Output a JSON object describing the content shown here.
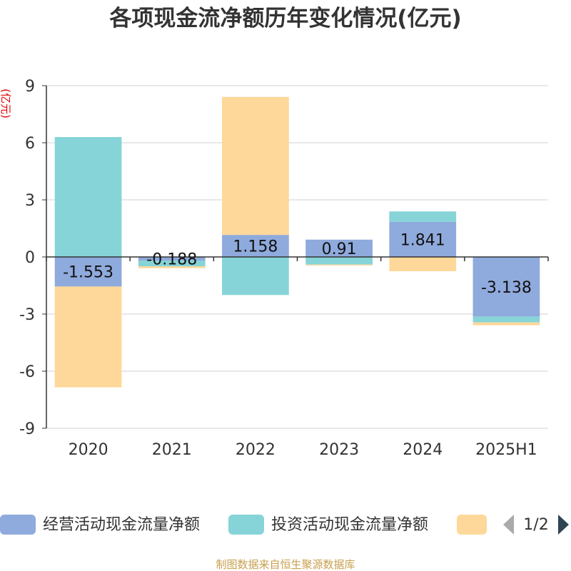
{
  "chart_data": {
    "type": "bar",
    "stacked": true,
    "title": "各项现金流净额历年变化情况(亿元)",
    "unit_label": "(亿元)",
    "categories": [
      "2020",
      "2021",
      "2022",
      "2023",
      "2024",
      "2025H1"
    ],
    "ylim": [
      -9,
      9
    ],
    "yticks": [
      9,
      6,
      3,
      0,
      -3,
      -6,
      -9
    ],
    "grid": true,
    "series": [
      {
        "name": "经营活动现金流量净额",
        "color": "#8faadc",
        "values": [
          -1.553,
          -0.188,
          1.158,
          0.91,
          1.841,
          -3.138
        ],
        "labels": [
          "-1.553",
          "-0.188",
          "1.158",
          "0.91",
          "1.841",
          "-3.138"
        ]
      },
      {
        "name": "投资活动现金流量净额",
        "color": "#86d4d8",
        "values": [
          6.3,
          -0.3,
          -2.0,
          -0.4,
          0.55,
          -0.3
        ],
        "labels": []
      },
      {
        "name": "",
        "color": "#fed89a",
        "values": [
          -5.3,
          -0.1,
          7.25,
          -0.05,
          -0.75,
          -0.15
        ],
        "labels": []
      }
    ],
    "legend": {
      "position": "bottom",
      "page": "1/2"
    }
  },
  "source": "制图数据来自恒生聚源数据库"
}
